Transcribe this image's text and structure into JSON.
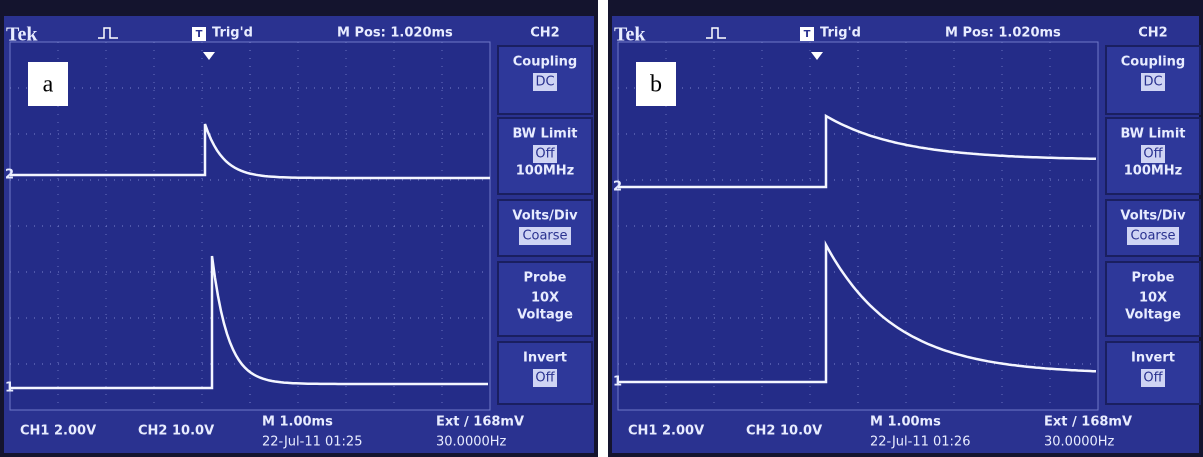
{
  "panels": [
    {
      "label": "a",
      "header": {
        "brand": "Tek",
        "trigger_icon": "T",
        "trigger_state": "Trig'd",
        "position": "M Pos: 1.020ms",
        "channel": "CH2"
      },
      "markers": [
        "2",
        "1"
      ],
      "menu": [
        {
          "title": "Coupling",
          "lines": [
            "DC"
          ]
        },
        {
          "title": "BW Limit",
          "lines": [
            "Off",
            "100MHz"
          ]
        },
        {
          "title": "Volts/Div",
          "lines": [
            "Coarse"
          ]
        },
        {
          "title": "Probe",
          "lines": [
            "10X",
            "Voltage"
          ]
        },
        {
          "title": "Invert",
          "lines": [
            "Off"
          ]
        }
      ],
      "footer": {
        "ch1": "CH1  2.00V",
        "ch2": "CH2  10.0V",
        "timebase": "M 1.00ms",
        "date": "22-Jul-11 01:25",
        "trigger": "Ext ∕ 168mV",
        "frequency": "30.0000Hz"
      }
    },
    {
      "label": "b",
      "header": {
        "brand": "Tek",
        "trigger_icon": "T",
        "trigger_state": "Trig'd",
        "position": "M Pos: 1.020ms",
        "channel": "CH2"
      },
      "markers": [
        "2",
        "1"
      ],
      "menu": [
        {
          "title": "Coupling",
          "lines": [
            "DC"
          ]
        },
        {
          "title": "BW Limit",
          "lines": [
            "Off",
            "100MHz"
          ]
        },
        {
          "title": "Volts/Div",
          "lines": [
            "Coarse"
          ]
        },
        {
          "title": "Probe",
          "lines": [
            "10X",
            "Voltage"
          ]
        },
        {
          "title": "Invert",
          "lines": [
            "Off"
          ]
        }
      ],
      "footer": {
        "ch1": "CH1  2.00V",
        "ch2": "CH2  10.0V",
        "timebase": "M 1.00ms",
        "date": "22-Jul-11 01:26",
        "trigger": "Ext ∕ 168mV",
        "frequency": "30.0000Hz"
      }
    }
  ]
}
